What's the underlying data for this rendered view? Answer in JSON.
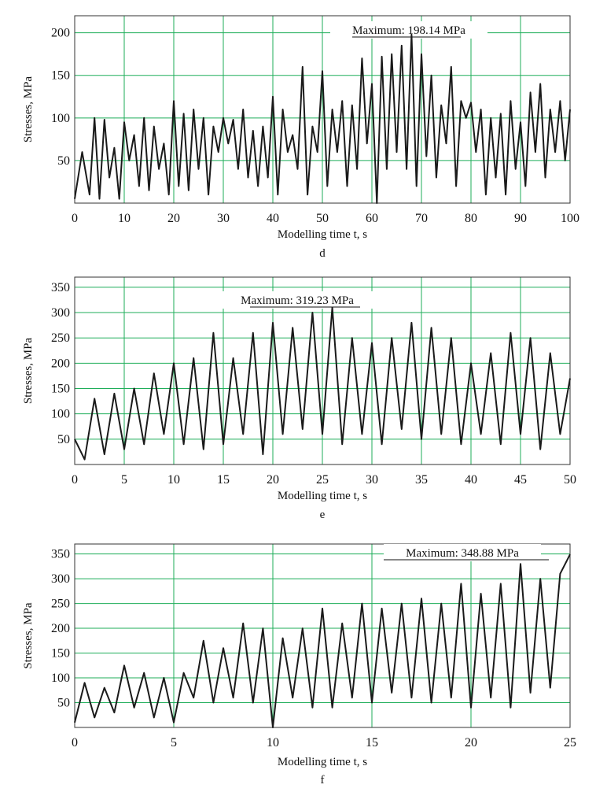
{
  "chart_data": [
    {
      "type": "line",
      "panel_label": "d",
      "xlabel": "Modelling time t, s",
      "ylabel": "Stresses, MPa",
      "xlim": [
        0,
        100
      ],
      "ylim": [
        0,
        220
      ],
      "xticks": [
        0,
        10,
        20,
        30,
        40,
        50,
        60,
        70,
        80,
        90,
        100
      ],
      "yticks": [
        50,
        100,
        150,
        200
      ],
      "grid": true,
      "annotation": "Maximum: 198.14 MPa",
      "series": [
        {
          "x": [
            0,
            1.5,
            3,
            4,
            5,
            6,
            7,
            8,
            9,
            10,
            11,
            12,
            13,
            14,
            15,
            16,
            17,
            18,
            19,
            20,
            21,
            22,
            23,
            24,
            25,
            26,
            27,
            28,
            29,
            30,
            31,
            32,
            33,
            34,
            35,
            36,
            37,
            38,
            39,
            40,
            41,
            42,
            43,
            44,
            45,
            46,
            47,
            48,
            49,
            50,
            51,
            52,
            53,
            54,
            55,
            56,
            57,
            58,
            59,
            60,
            61,
            62,
            63,
            64,
            65,
            66,
            67,
            68,
            69,
            70,
            71,
            72,
            73,
            74,
            75,
            76,
            77,
            78,
            79,
            80,
            81,
            82,
            83,
            84,
            85,
            86,
            87,
            88,
            89,
            90,
            91,
            92,
            93,
            94,
            95,
            96,
            97,
            98,
            99,
            100
          ],
          "y": [
            5,
            60,
            10,
            100,
            5,
            98,
            30,
            65,
            5,
            95,
            50,
            80,
            20,
            100,
            15,
            90,
            40,
            70,
            10,
            120,
            20,
            105,
            15,
            110,
            40,
            100,
            10,
            90,
            60,
            100,
            70,
            98,
            40,
            110,
            30,
            85,
            20,
            90,
            30,
            125,
            10,
            110,
            60,
            80,
            40,
            160,
            10,
            90,
            60,
            155,
            20,
            110,
            60,
            120,
            20,
            115,
            40,
            170,
            70,
            140,
            0,
            172,
            40,
            175,
            60,
            185,
            40,
            198,
            20,
            175,
            55,
            150,
            30,
            115,
            70,
            160,
            20,
            120,
            100,
            118,
            60,
            110,
            10,
            100,
            30,
            105,
            10,
            120,
            40,
            95,
            20,
            130,
            60,
            140,
            30,
            110,
            60,
            120,
            50,
            110
          ]
        }
      ]
    },
    {
      "type": "line",
      "panel_label": "e",
      "xlabel": "Modelling time t, s",
      "ylabel": "Stresses, MPa",
      "xlim": [
        0,
        50
      ],
      "ylim": [
        0,
        370
      ],
      "xticks": [
        0,
        5,
        10,
        15,
        20,
        25,
        30,
        35,
        40,
        45,
        50
      ],
      "yticks": [
        50,
        100,
        150,
        200,
        250,
        300,
        350
      ],
      "grid": true,
      "annotation": "Maximum: 319.23 MPa",
      "series": [
        {
          "x": [
            0,
            1,
            2,
            3,
            4,
            5,
            6,
            7,
            8,
            9,
            10,
            11,
            12,
            13,
            14,
            15,
            16,
            17,
            18,
            19,
            20,
            21,
            22,
            23,
            24,
            25,
            26,
            27,
            28,
            29,
            30,
            31,
            32,
            33,
            34,
            35,
            36,
            37,
            38,
            39,
            40,
            41,
            42,
            43,
            44,
            45,
            46,
            47,
            48,
            49,
            50
          ],
          "y": [
            50,
            10,
            130,
            20,
            140,
            30,
            150,
            40,
            180,
            60,
            200,
            40,
            210,
            30,
            260,
            40,
            210,
            60,
            260,
            20,
            280,
            60,
            270,
            70,
            300,
            60,
            310,
            40,
            250,
            60,
            240,
            40,
            250,
            70,
            280,
            50,
            270,
            60,
            250,
            40,
            200,
            60,
            220,
            40,
            260,
            60,
            250,
            30,
            220,
            60,
            170
          ]
        }
      ]
    },
    {
      "type": "line",
      "panel_label": "f",
      "xlabel": "Modelling time t, s",
      "ylabel": "Stresses, MPa",
      "xlim": [
        0,
        25
      ],
      "ylim": [
        0,
        370
      ],
      "xticks": [
        0,
        5,
        10,
        15,
        20,
        25
      ],
      "yticks": [
        50,
        100,
        150,
        200,
        250,
        300,
        350
      ],
      "grid": true,
      "annotation": "Maximum: 348.88 MPa",
      "series": [
        {
          "x": [
            0,
            0.5,
            1,
            1.5,
            2,
            2.5,
            3,
            3.5,
            4,
            4.5,
            5,
            5.5,
            6,
            6.5,
            7,
            7.5,
            8,
            8.5,
            9,
            9.5,
            10,
            10.5,
            11,
            11.5,
            12,
            12.5,
            13,
            13.5,
            14,
            14.5,
            15,
            15.5,
            16,
            16.5,
            17,
            17.5,
            18,
            18.5,
            19,
            19.5,
            20,
            20.5,
            21,
            21.5,
            22,
            22.5,
            23,
            23.5,
            24,
            24.5,
            25
          ],
          "y": [
            10,
            90,
            20,
            80,
            30,
            125,
            40,
            110,
            20,
            100,
            10,
            110,
            60,
            175,
            50,
            160,
            60,
            210,
            50,
            200,
            0,
            180,
            60,
            200,
            40,
            240,
            40,
            210,
            60,
            250,
            50,
            240,
            70,
            250,
            60,
            260,
            50,
            250,
            60,
            290,
            40,
            270,
            60,
            290,
            40,
            330,
            70,
            300,
            80,
            310,
            349
          ]
        }
      ]
    }
  ]
}
